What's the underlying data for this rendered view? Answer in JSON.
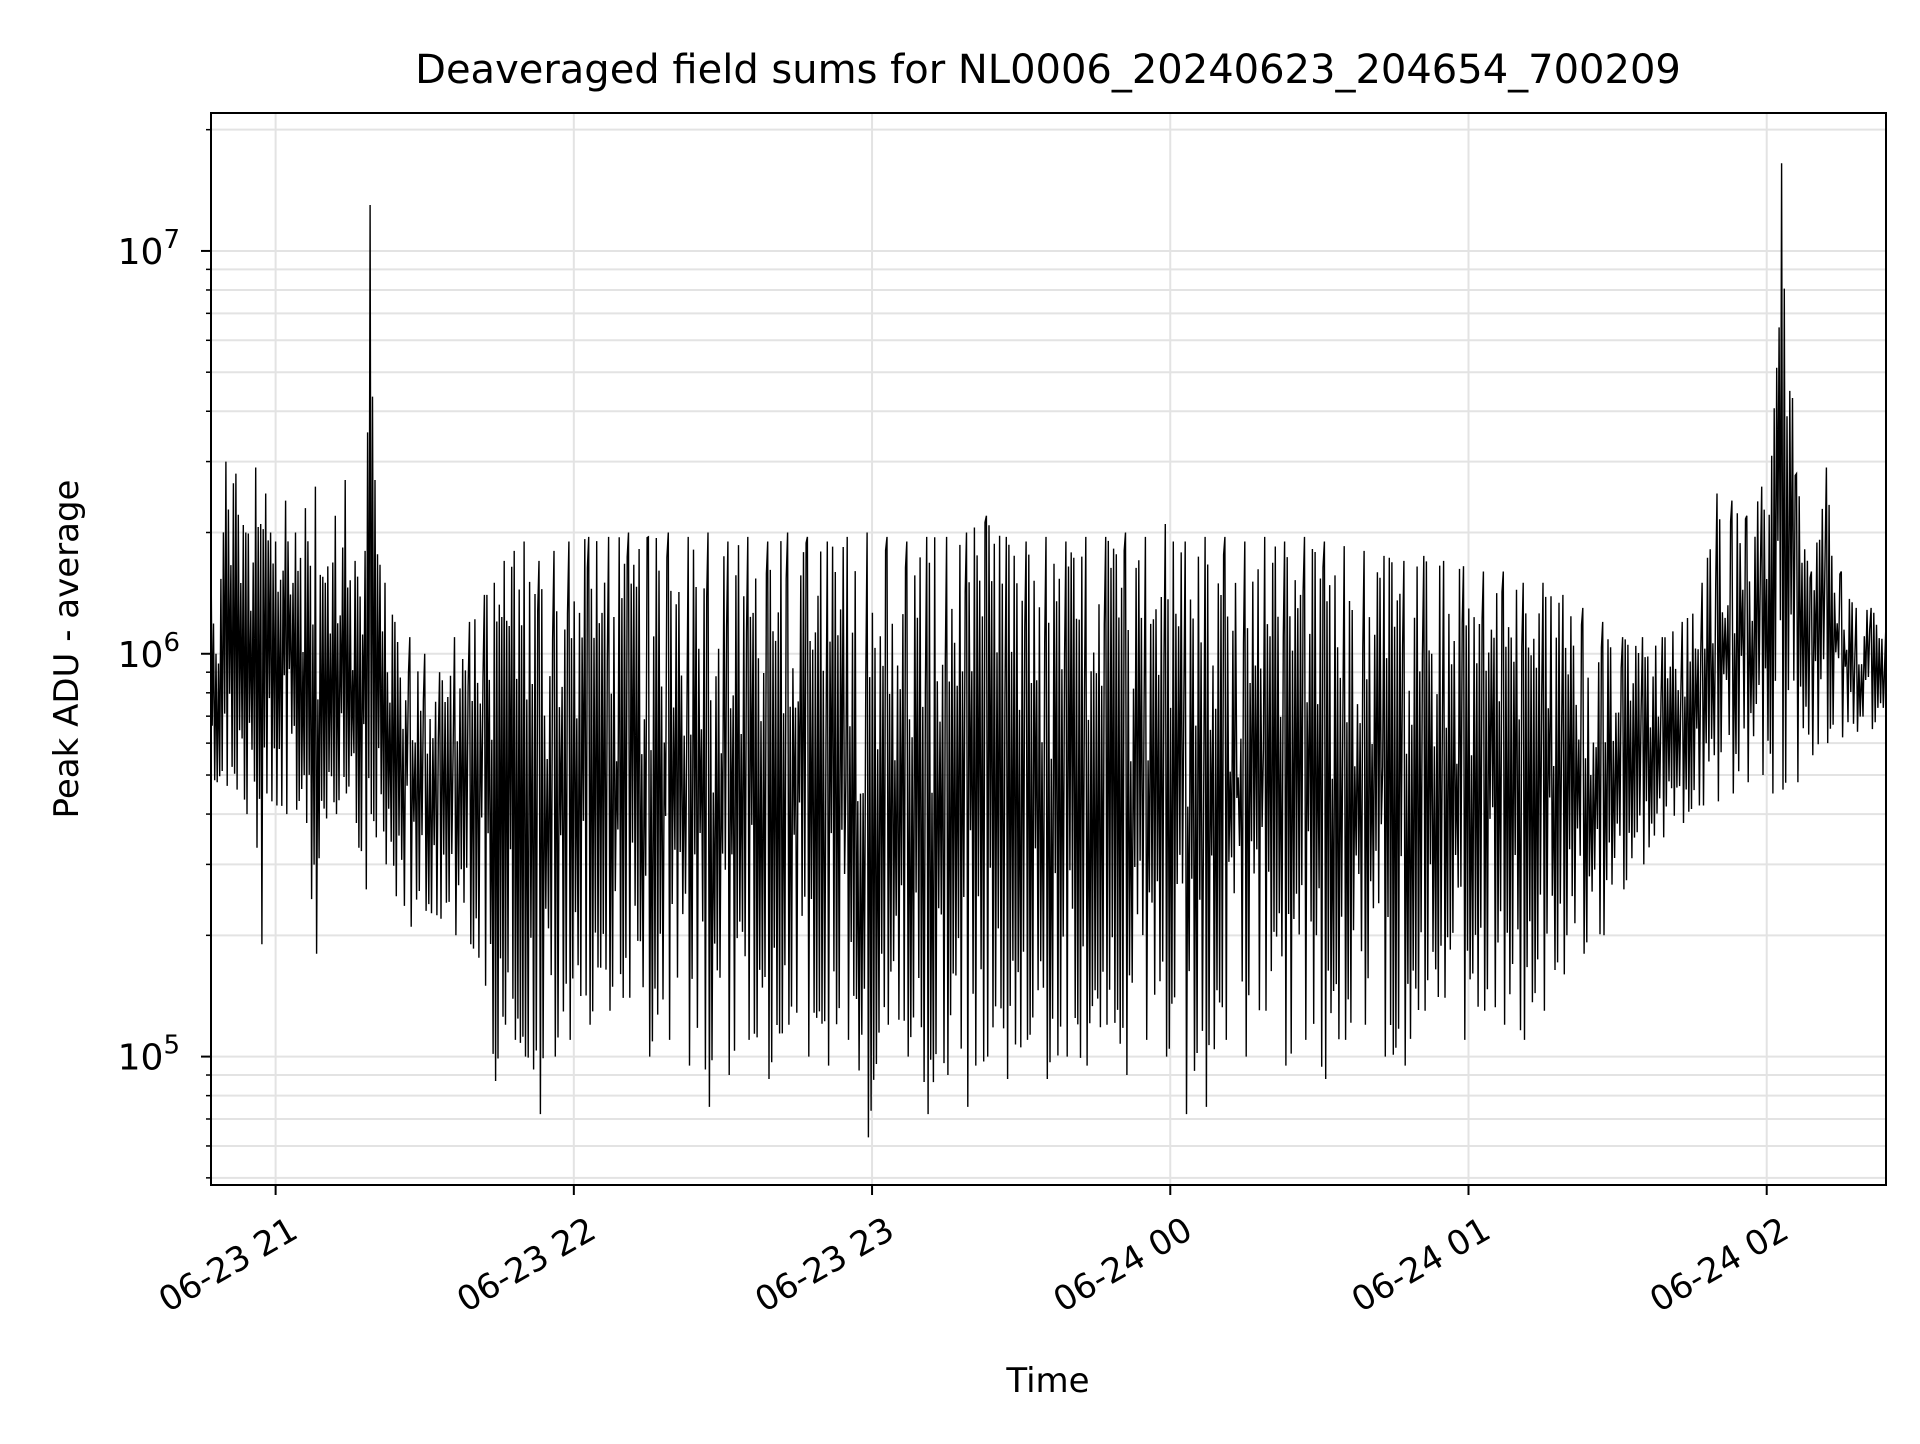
{
  "chart_data": {
    "type": "line",
    "title": "Deaveraged field sums for NL0006_20240623_204654_700209",
    "xlabel": "Time",
    "ylabel": "Peak ADU - average",
    "y_scale": "log",
    "ylim": [
      48000,
      22000000
    ],
    "xlim": [
      "2024-06-23 20:47",
      "2024-06-24 02:24"
    ],
    "grid": true,
    "line_color": "#000000",
    "x_ticks": [
      {
        "t": "2024-06-23 21:00",
        "label": "06-23 21"
      },
      {
        "t": "2024-06-23 22:00",
        "label": "06-23 22"
      },
      {
        "t": "2024-06-23 23:00",
        "label": "06-23 23"
      },
      {
        "t": "2024-06-24 00:00",
        "label": "06-24 00"
      },
      {
        "t": "2024-06-24 01:00",
        "label": "06-24 01"
      },
      {
        "t": "2024-06-24 02:00",
        "label": "06-24 02"
      }
    ],
    "y_ticks": [
      {
        "value": 100000,
        "base": "10",
        "exp": "5"
      },
      {
        "value": 1000000,
        "base": "10",
        "exp": "6"
      },
      {
        "value": 10000000,
        "base": "10",
        "exp": "7"
      }
    ],
    "series": [
      {
        "x": [
          "2024-06-23 20:47",
          "2024-06-23 20:48",
          "2024-06-23 20:50",
          "2024-06-23 20:52",
          "2024-06-23 20:54",
          "2024-06-23 20:56",
          "2024-06-23 20:57",
          "2024-06-23 20:58",
          "2024-06-23 20:59",
          "2024-06-23 21:00",
          "2024-06-23 21:02",
          "2024-06-23 21:04",
          "2024-06-23 21:06",
          "2024-06-23 21:08",
          "2024-06-23 21:10",
          "2024-06-23 21:12",
          "2024-06-23 21:14",
          "2024-06-23 21:16",
          "2024-06-23 21:18",
          "2024-06-23 21:19",
          "2024-06-23 21:20",
          "2024-06-23 21:22",
          "2024-06-23 21:24",
          "2024-06-23 21:27",
          "2024-06-23 21:30",
          "2024-06-23 21:33",
          "2024-06-23 21:36",
          "2024-06-23 21:39",
          "2024-06-23 21:42",
          "2024-06-23 21:44",
          "2024-06-23 21:46",
          "2024-06-23 21:48",
          "2024-06-23 21:50",
          "2024-06-23 21:53",
          "2024-06-23 21:56",
          "2024-06-23 21:59",
          "2024-06-23 22:03",
          "2024-06-23 22:07",
          "2024-06-23 22:11",
          "2024-06-23 22:15",
          "2024-06-23 22:19",
          "2024-06-23 22:23",
          "2024-06-23 22:27",
          "2024-06-23 22:31",
          "2024-06-23 22:35",
          "2024-06-23 22:39",
          "2024-06-23 22:43",
          "2024-06-23 22:47",
          "2024-06-23 22:51",
          "2024-06-23 22:55",
          "2024-06-23 22:59",
          "2024-06-23 23:03",
          "2024-06-23 23:07",
          "2024-06-23 23:11",
          "2024-06-23 23:15",
          "2024-06-23 23:19",
          "2024-06-23 23:23",
          "2024-06-23 23:27",
          "2024-06-23 23:31",
          "2024-06-23 23:35",
          "2024-06-23 23:39",
          "2024-06-23 23:43",
          "2024-06-23 23:47",
          "2024-06-23 23:51",
          "2024-06-23 23:55",
          "2024-06-23 23:59",
          "2024-06-24 00:03",
          "2024-06-24 00:07",
          "2024-06-24 00:11",
          "2024-06-24 00:15",
          "2024-06-24 00:19",
          "2024-06-24 00:23",
          "2024-06-24 00:27",
          "2024-06-24 00:31",
          "2024-06-24 00:35",
          "2024-06-24 00:39",
          "2024-06-24 00:43",
          "2024-06-24 00:47",
          "2024-06-24 00:51",
          "2024-06-24 00:55",
          "2024-06-24 00:59",
          "2024-06-24 01:03",
          "2024-06-24 01:07",
          "2024-06-24 01:11",
          "2024-06-24 01:15",
          "2024-06-24 01:19",
          "2024-06-24 01:23",
          "2024-06-24 01:27",
          "2024-06-24 01:31",
          "2024-06-24 01:35",
          "2024-06-24 01:39",
          "2024-06-24 01:43",
          "2024-06-24 01:47",
          "2024-06-24 01:50",
          "2024-06-24 01:53",
          "2024-06-24 01:56",
          "2024-06-24 01:59",
          "2024-06-24 02:01",
          "2024-06-24 02:03",
          "2024-06-24 02:06",
          "2024-06-24 02:09",
          "2024-06-24 02:12",
          "2024-06-24 02:15",
          "2024-06-24 02:18",
          "2024-06-24 02:21",
          "2024-06-24 02:24"
        ],
        "envelope_high": [
          1800000,
          1000000,
          3000000,
          2800000,
          2000000,
          2900000,
          2100000,
          2500000,
          2000000,
          1900000,
          2400000,
          2000000,
          2300000,
          2600000,
          1500000,
          2200000,
          2700000,
          1700000,
          1800000,
          13000000,
          2700000,
          1500000,
          1200000,
          1100000,
          1000000,
          900000,
          1100000,
          1200000,
          1400000,
          1500000,
          1700000,
          1800000,
          1900000,
          1700000,
          1800000,
          1900000,
          1950000,
          1950000,
          2000000,
          1950000,
          2000000,
          1950000,
          2000000,
          1900000,
          1950000,
          1900000,
          2000000,
          1950000,
          1900000,
          1950000,
          2000000,
          1950000,
          1900000,
          1950000,
          1950000,
          2000000,
          2200000,
          1950000,
          1900000,
          1950000,
          1900000,
          1950000,
          1950000,
          2000000,
          1950000,
          2100000,
          1900000,
          1950000,
          1950000,
          1900000,
          1950000,
          1900000,
          1950000,
          1900000,
          1850000,
          1800000,
          1750000,
          1700000,
          1750000,
          1700000,
          1650000,
          1600000,
          1600000,
          1500000,
          1500000,
          1400000,
          1300000,
          1200000,
          1100000,
          1100000,
          1100000,
          1200000,
          1500000,
          2500000,
          2400000,
          2200000,
          2600000,
          3100000,
          16500000,
          2800000,
          1600000,
          2900000,
          1600000,
          1300000,
          1300000,
          1200000
        ],
        "envelope_low": [
          500000,
          480000,
          470000,
          460000,
          400000,
          330000,
          190000,
          450000,
          430000,
          420000,
          400000,
          410000,
          380000,
          180000,
          390000,
          400000,
          450000,
          380000,
          260000,
          400000,
          350000,
          300000,
          250000,
          210000,
          230000,
          220000,
          200000,
          190000,
          150000,
          87000,
          120000,
          110000,
          100000,
          72000,
          100000,
          110000,
          120000,
          130000,
          140000,
          100000,
          110000,
          95000,
          75000,
          90000,
          110000,
          88000,
          120000,
          100000,
          95000,
          110000,
          63000,
          120000,
          100000,
          72000,
          90000,
          75000,
          100000,
          88000,
          110000,
          88000,
          100000,
          95000,
          120000,
          90000,
          110000,
          100000,
          72000,
          75000,
          110000,
          100000,
          130000,
          95000,
          110000,
          88000,
          110000,
          120000,
          100000,
          95000,
          130000,
          140000,
          110000,
          130000,
          120000,
          110000,
          130000,
          160000,
          180000,
          200000,
          260000,
          300000,
          350000,
          380000,
          420000,
          430000,
          450000,
          480000,
          500000,
          450000,
          460000,
          480000,
          560000,
          600000,
          620000,
          640000,
          650000,
          680000
        ]
      }
    ]
  }
}
